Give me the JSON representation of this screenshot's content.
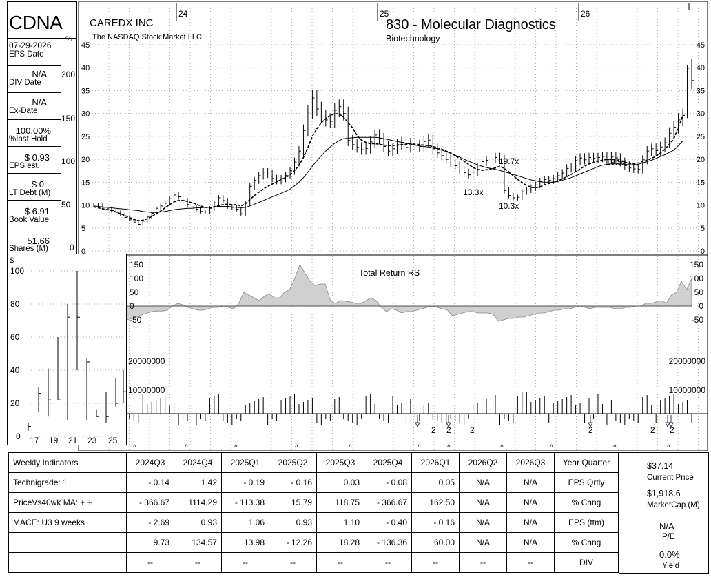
{
  "header": {
    "ticker": "CDNA",
    "company": "CAREDX INC",
    "exchange": "The NASDAQ Stock Market LLC",
    "group": "830 - Molecular Diagnostics",
    "sector": "Biotechnology"
  },
  "sidebar": {
    "pct_unit": "%",
    "items": [
      {
        "value": "07-29-2026",
        "label": "EPS Date"
      },
      {
        "value": "N/A",
        "label": "DIV Date"
      },
      {
        "value": "N/A",
        "label": "Ex-Date"
      },
      {
        "value": "100.00%",
        "label": "%Inst Hold"
      },
      {
        "value": "$ 0.93",
        "label": "EPS est."
      },
      {
        "value": "$ 0",
        "label": "LT Debt (M)"
      },
      {
        "value": "$ 6.91",
        "label": "Book Value"
      },
      {
        "value": "51.66",
        "label": "Shares (M)"
      }
    ],
    "pct_ticks": [
      "200",
      "150",
      "100",
      "50",
      "0"
    ]
  },
  "annual": {
    "unit": "$",
    "years": [
      "17",
      "19",
      "21",
      "23",
      "25"
    ]
  },
  "chart_data": {
    "type": "line",
    "title": "830 - Molecular Diagnostics",
    "years": [
      "24",
      "25",
      "26"
    ],
    "price_ticks": [
      45,
      40,
      35,
      30,
      25,
      20,
      15,
      10,
      5,
      0
    ],
    "ylim": [
      0,
      45
    ],
    "pe_labels": [
      {
        "week": 84,
        "price": 12.8,
        "text": "13.3x"
      },
      {
        "week": 92,
        "price": 19.6,
        "text": "19.7x"
      },
      {
        "week": 92,
        "price": 9.8,
        "text": "10.3x"
      },
      {
        "week": 116,
        "price": 19.4,
        "text": "19.5x"
      }
    ],
    "weekly_close": [
      10,
      10,
      9.5,
      9.2,
      8.8,
      8.4,
      8.0,
      7.3,
      6.8,
      6.3,
      5.8,
      6.5,
      7.4,
      8.2,
      9.3,
      9.8,
      10.4,
      11.4,
      12.2,
      11.8,
      11.0,
      10.1,
      9.6,
      9.1,
      8.6,
      8.5,
      9.3,
      10.5,
      11.6,
      11.0,
      9.7,
      9.5,
      9.1,
      8.1,
      10.4,
      14.1,
      15.4,
      16.4,
      17.2,
      16.8,
      15.8,
      15.3,
      15.8,
      16.5,
      17.5,
      19.4,
      21.8,
      26.3,
      30.3,
      33.4,
      31.0,
      29.4,
      28.6,
      28.3,
      30.7,
      31.5,
      30.0,
      24.1,
      23.2,
      22.6,
      22.1,
      22.4,
      23.8,
      25.3,
      24.5,
      22.8,
      21.8,
      22.3,
      23.2,
      23.7,
      22.6,
      23.5,
      23.1,
      22.8,
      23.9,
      24.2,
      22.3,
      21.4,
      20.8,
      20.0,
      19.2,
      18.6,
      17.7,
      17.1,
      16.6,
      17.2,
      18.3,
      19.5,
      19.8,
      20.1,
      20.4,
      20.0,
      13.2,
      12.1,
      11.6,
      11.7,
      12.9,
      13.3,
      13.8,
      14.4,
      15.2,
      15.6,
      15.4,
      15.8,
      16.4,
      17.0,
      18.0,
      18.3,
      19.7,
      20.3,
      19.9,
      20.4,
      20.2,
      20.4,
      20.6,
      20.0,
      20.5,
      20.3,
      19.4,
      18.6,
      18.1,
      17.9,
      17.8,
      19.9,
      21.8,
      22.3,
      21.9,
      22.7,
      23.6,
      25.7,
      27.0,
      28.6,
      29.6,
      39.9,
      37.2
    ],
    "series": [
      {
        "name": "10-week MA",
        "values": [
          9.6,
          9.4,
          9.2,
          9.0,
          8.8,
          8.5,
          8.1,
          7.7,
          7.3,
          6.9,
          6.6,
          6.7,
          7.0,
          7.5,
          8.1,
          8.7,
          9.4,
          10.1,
          10.7,
          11.0,
          11.0,
          10.8,
          10.5,
          10.2,
          9.8,
          9.5,
          9.4,
          9.6,
          9.9,
          10.1,
          10.2,
          10.1,
          10.1,
          9.8,
          10.3,
          11.2,
          12.1,
          12.8,
          13.5,
          14.1,
          14.6,
          15.1,
          15.6,
          16.0,
          16.6,
          17.5,
          18.7,
          20.4,
          22.6,
          25.0,
          26.7,
          28.0,
          28.9,
          29.5,
          30.0,
          29.9,
          29.2,
          28.0,
          26.9,
          25.2,
          24.2,
          23.7,
          23.4,
          23.4,
          23.3,
          23.1,
          23.0,
          23.0,
          23.1,
          23.2,
          23.3,
          23.4,
          23.3,
          23.2,
          23.1,
          23.0,
          22.8,
          22.5,
          22.2,
          21.8,
          21.4,
          20.8,
          20.2,
          19.6,
          18.9,
          18.2,
          17.8,
          17.6,
          17.7,
          17.9,
          18.1,
          18.5,
          18.0,
          17.3,
          16.4,
          15.6,
          14.9,
          14.3,
          13.9,
          13.8,
          14.0,
          14.4,
          14.7,
          15.0,
          15.3,
          15.7,
          16.2,
          16.7,
          17.3,
          17.9,
          18.5,
          19.0,
          19.3,
          19.6,
          19.8,
          20.0,
          20.0,
          19.9,
          19.7,
          19.4,
          19.1,
          19.0,
          19.2,
          19.5,
          19.8,
          20.2,
          20.7,
          21.4,
          22.2,
          23.3,
          24.5,
          27.0,
          29.5
        ]
      },
      {
        "name": "40-week MA",
        "values": [
          9.8,
          9.7,
          9.6,
          9.5,
          9.4,
          9.3,
          9.2,
          9.1,
          9.0,
          8.9,
          8.8,
          8.6,
          8.5,
          8.4,
          8.4,
          8.5,
          8.6,
          8.8,
          9.0,
          9.1,
          9.2,
          9.3,
          9.3,
          9.4,
          9.4,
          9.5,
          9.5,
          9.6,
          9.7,
          9.7,
          9.7,
          9.6,
          9.5,
          9.4,
          9.5,
          9.8,
          10.2,
          10.6,
          11.0,
          11.4,
          11.8,
          12.2,
          12.6,
          13.0,
          13.5,
          14.2,
          15.0,
          16.0,
          17.2,
          18.5,
          19.7,
          20.8,
          21.8,
          22.7,
          23.5,
          24.1,
          24.5,
          24.6,
          24.7,
          24.8,
          24.8,
          24.8,
          24.8,
          24.8,
          24.7,
          24.5,
          24.3,
          24.1,
          23.9,
          23.7,
          23.5,
          23.3,
          23.1,
          22.9,
          22.8,
          22.7,
          22.5,
          22.3,
          22.0,
          21.7,
          21.3,
          20.9,
          20.5,
          20.0,
          19.6,
          19.2,
          18.8,
          18.5,
          18.2,
          18.0,
          17.8,
          17.6,
          17.3,
          17.0,
          16.7,
          16.4,
          16.1,
          15.8,
          15.5,
          15.3,
          15.1,
          15.0,
          15.0,
          15.0,
          15.2,
          15.4,
          15.7,
          16.0,
          16.4,
          16.8,
          17.2,
          17.6,
          18.0,
          18.4,
          18.7,
          18.9,
          19.0,
          19.0,
          19.0,
          18.9,
          18.8,
          18.8,
          18.9,
          19.2,
          19.5,
          19.8,
          20.2,
          20.6,
          21.0,
          21.5,
          22.0,
          23.0,
          24.0
        ]
      }
    ],
    "rs": {
      "label": "Total Return RS",
      "ticks": [
        150,
        100,
        50,
        0,
        -50
      ],
      "values": [
        -50,
        -45,
        -40,
        -32,
        -25,
        -20,
        -18,
        -18,
        -15,
        0,
        10,
        5,
        -5,
        -10,
        -15,
        -15,
        -10,
        -5,
        -5,
        0,
        -5,
        -10,
        10,
        50,
        40,
        30,
        20,
        35,
        45,
        30,
        30,
        50,
        60,
        100,
        150,
        120,
        90,
        75,
        80,
        80,
        20,
        10,
        20,
        18,
        15,
        10,
        10,
        20,
        30,
        20,
        -5,
        -20,
        -10,
        -15,
        -25,
        -20,
        -20,
        -15,
        -10,
        -5,
        0,
        -5,
        -10,
        -15,
        -35,
        -30,
        -25,
        -20,
        -20,
        -25,
        -25,
        -25,
        -30,
        -55,
        -50,
        -45,
        -45,
        -40,
        -40,
        -35,
        -30,
        -25,
        -25,
        -20,
        -15,
        -15,
        -10,
        -10,
        -5,
        0,
        -5,
        -10,
        -5,
        -5,
        -5,
        -5,
        -10,
        -10,
        -5,
        -5,
        0,
        0,
        10,
        10,
        15,
        20,
        10,
        40,
        50,
        90,
        60,
        100
      ]
    },
    "volume": {
      "ticks": [
        "20000000",
        "10000000"
      ],
      "ylim": [
        0,
        20000000
      ],
      "markers_up": [
        "^",
        "^",
        "^",
        "^",
        "^",
        "^",
        "^",
        "^",
        "^",
        "^",
        "^",
        "^",
        "^"
      ],
      "marks": [
        "2",
        "2",
        "2",
        "2",
        "2",
        "2"
      ]
    }
  },
  "indicators": {
    "title": "Weekly Indicators",
    "quarters": [
      "2024Q3",
      "2024Q4",
      "2025Q1",
      "2025Q2",
      "2025Q3",
      "2025Q4",
      "2026Q1",
      "2026Q2",
      "2026Q3"
    ],
    "last_col_header": "Year Quarter",
    "rows": [
      {
        "label": "Technigrade: 1",
        "values": [
          "- 0.14",
          "1.42",
          "- 0.19",
          "- 0.16",
          "0.03",
          "- 0.08",
          "0.05",
          "N/A",
          "N/A"
        ],
        "tail": "EPS Qrtly"
      },
      {
        "label": "PriceVs40wk MA:  + +",
        "values": [
          "- 366.67",
          "1114.29",
          "- 113.38",
          "15.79",
          "118.75",
          "- 366.67",
          "162.50",
          "N/A",
          "N/A"
        ],
        "tail": "% Chng"
      },
      {
        "label": "MACE: U3  9 weeks",
        "values": [
          "- 2.69",
          "0.93",
          "1.06",
          "0.93",
          "1.10",
          "- 0.40",
          "- 0.16",
          "N/A",
          "N/A"
        ],
        "tail": "EPS (ttm)"
      },
      {
        "label": "",
        "values": [
          "9.73",
          "134.57",
          "13.98",
          "- 12.26",
          "18.28",
          "- 136.36",
          "60.00",
          "N/A",
          "N/A"
        ],
        "tail": "% Chng"
      },
      {
        "label": "",
        "values": [
          "--",
          "--",
          "--",
          "--",
          "--",
          "--",
          "--",
          "--",
          "--"
        ],
        "tail": "DIV"
      }
    ]
  },
  "summary": {
    "price": "$37.14",
    "price_label": "Current Price",
    "mcap": "$1,918.6",
    "mcap_label": "MarketCap (M)",
    "pe": "N/A",
    "pe_label": "P/E",
    "yield": "0.0%",
    "yield_label": "Yield"
  },
  "colors": {
    "grid": "#b0b0b0",
    "rs_fill": "#d0d0d0",
    "bar": "#000000"
  }
}
